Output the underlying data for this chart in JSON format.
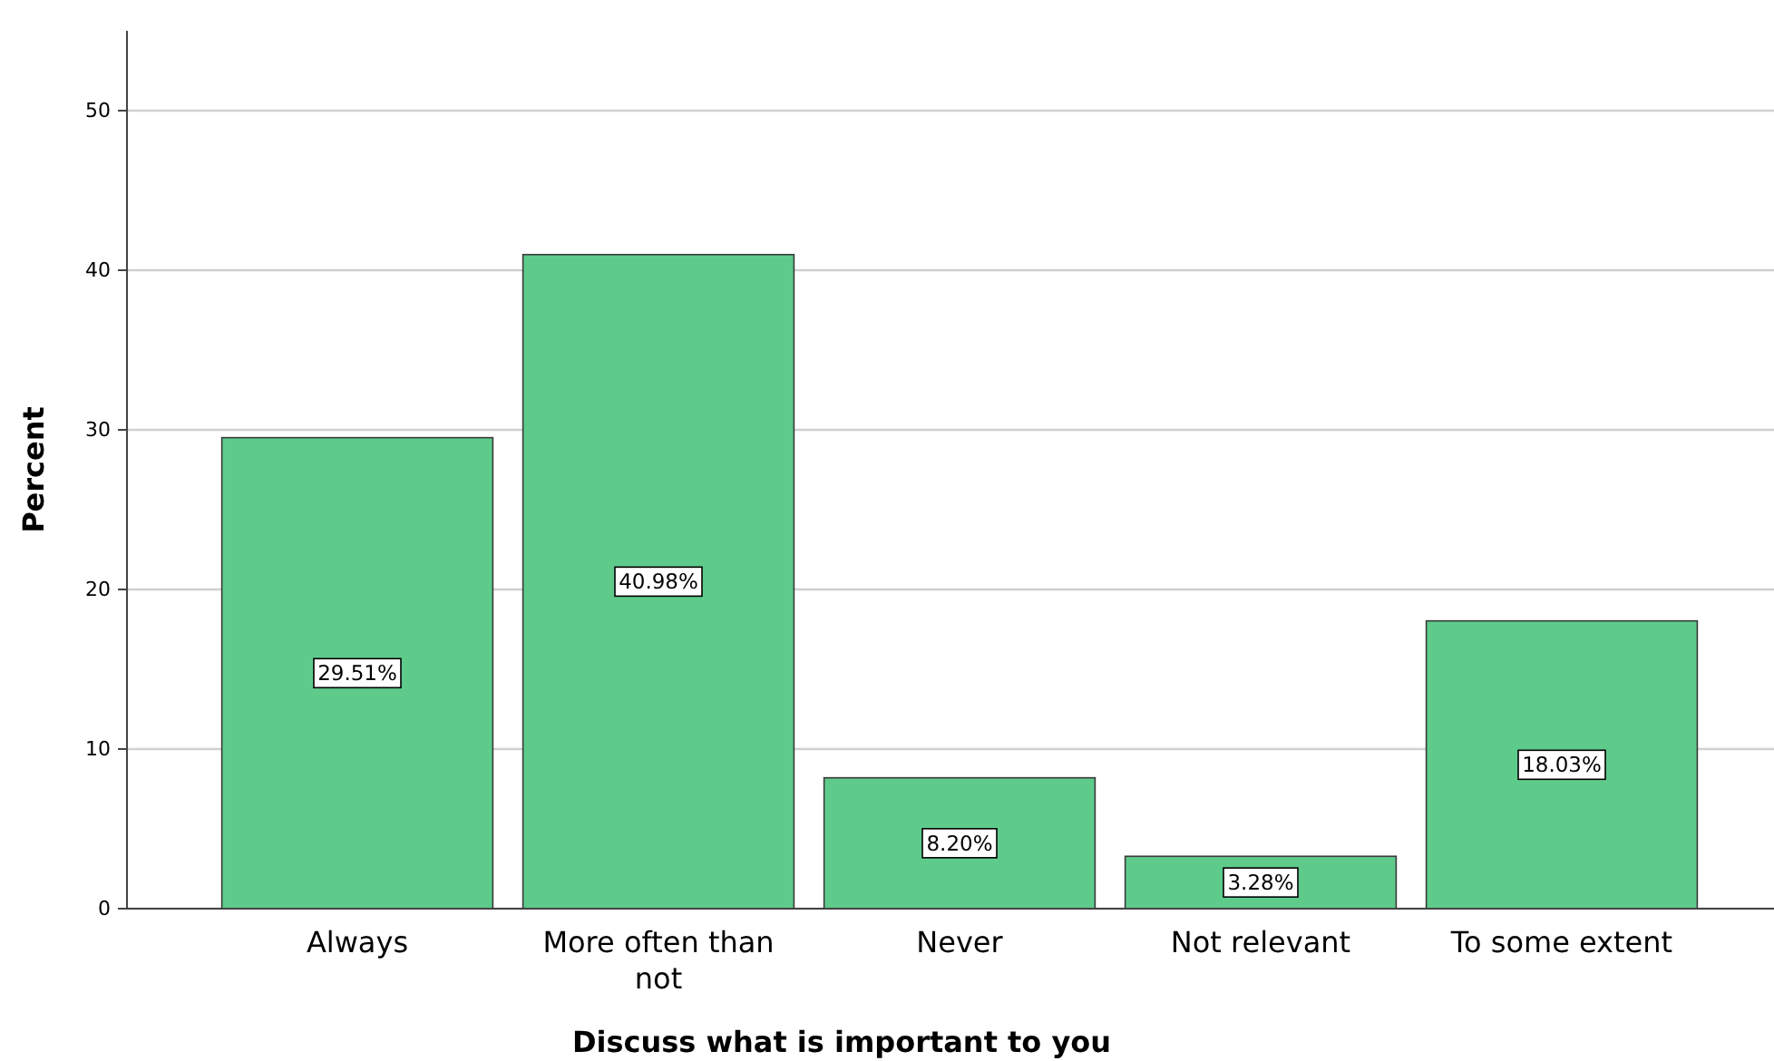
{
  "chart_data": {
    "type": "bar",
    "xlabel": "Discuss what is important to you",
    "ylabel": "Percent",
    "categories": [
      "Always",
      "More often than not",
      "Never",
      "Not relevant",
      "To some extent"
    ],
    "values": [
      29.51,
      40.98,
      8.2,
      3.28,
      18.03
    ],
    "value_labels": [
      "29.51%",
      "40.98%",
      "8.20%",
      "3.28%",
      "18.03%"
    ],
    "color": "#5ecb8b",
    "ylim": [
      0,
      55
    ],
    "yticks": [
      0,
      10,
      20,
      30,
      40,
      50
    ],
    "grid": "y"
  }
}
